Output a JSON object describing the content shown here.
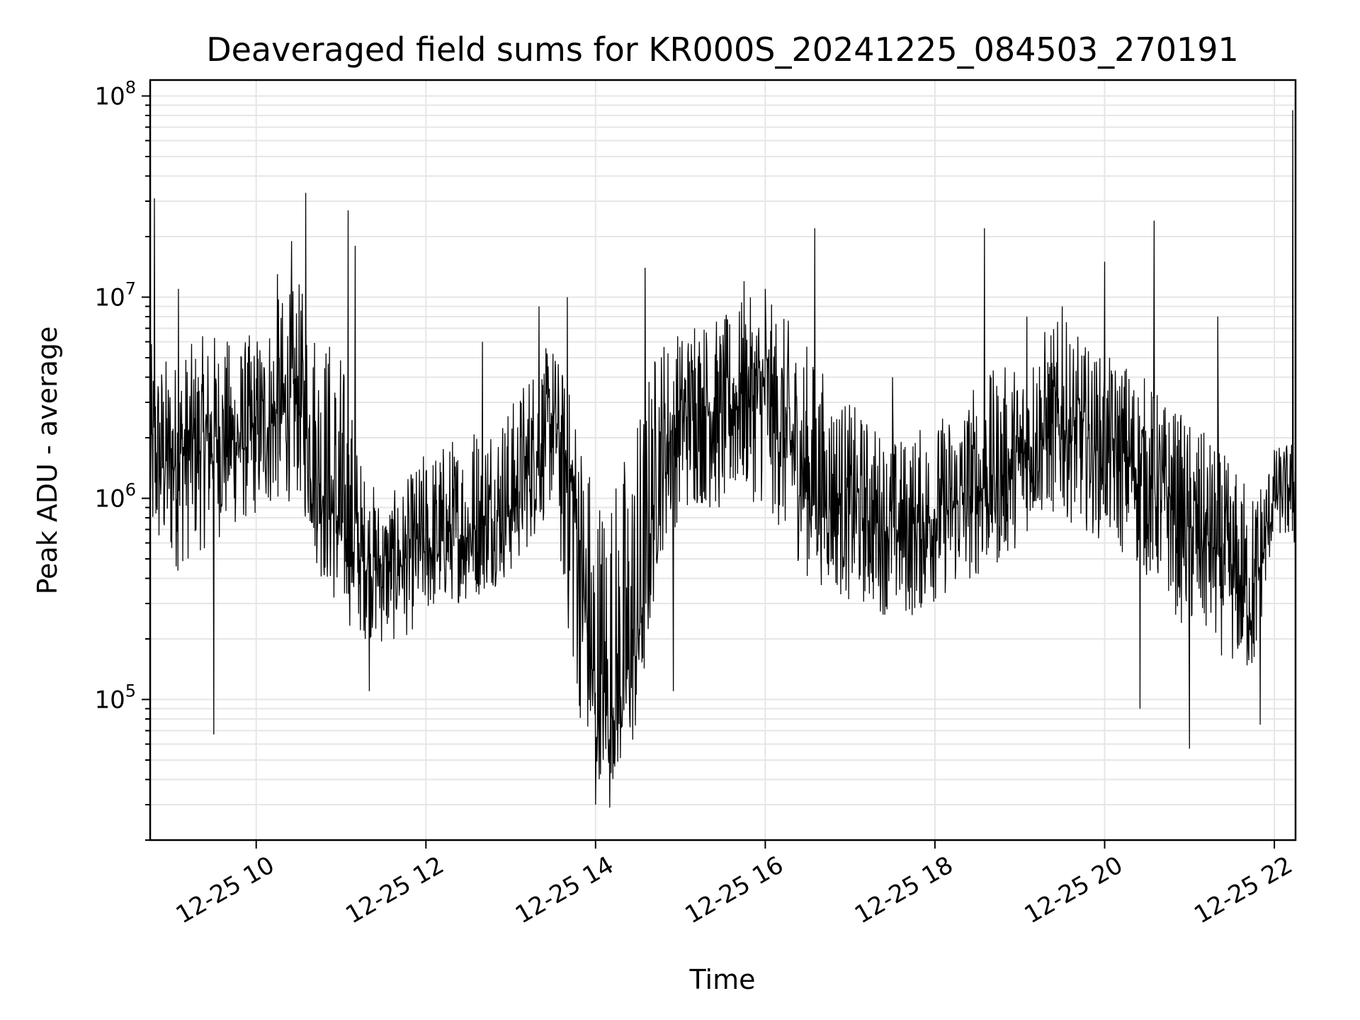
{
  "chart_data": {
    "type": "line",
    "title": "Deaveraged field sums for KR000S_20241225_084503_270191",
    "xlabel": "Time",
    "ylabel": "Peak ADU - average",
    "yscale": "log",
    "ylim": [
      20000,
      120000000
    ],
    "xlim": [
      "12-25 08:45",
      "12-25 22:15"
    ],
    "x_ticks": [
      {
        "value": "12-25 10:00",
        "label": "12-25 10"
      },
      {
        "value": "12-25 12:00",
        "label": "12-25 12"
      },
      {
        "value": "12-25 14:00",
        "label": "12-25 14"
      },
      {
        "value": "12-25 16:00",
        "label": "12-25 16"
      },
      {
        "value": "12-25 18:00",
        "label": "12-25 18"
      },
      {
        "value": "12-25 20:00",
        "label": "12-25 20"
      },
      {
        "value": "12-25 22:00",
        "label": "12-25 22"
      }
    ],
    "y_ticks": [
      {
        "value": 100000,
        "base": "10",
        "exp": "5"
      },
      {
        "value": 1000000,
        "base": "10",
        "exp": "6"
      },
      {
        "value": 10000000,
        "base": "10",
        "exp": "7"
      },
      {
        "value": 100000000,
        "base": "10",
        "exp": "8"
      }
    ],
    "grid": true,
    "line_color": "#000000",
    "series": [
      {
        "x": [
          "12-25 08:45",
          "12-25 09:00",
          "12-25 09:15",
          "12-25 09:30",
          "12-25 09:45",
          "12-25 10:00",
          "12-25 10:15",
          "12-25 10:30",
          "12-25 10:45",
          "12-25 11:00",
          "12-25 11:15",
          "12-25 11:30",
          "12-25 11:45",
          "12-25 12:00",
          "12-25 12:15",
          "12-25 12:30",
          "12-25 12:45",
          "12-25 13:00",
          "12-25 13:15",
          "12-25 13:30",
          "12-25 13:45",
          "12-25 14:00",
          "12-25 14:15",
          "12-25 14:30",
          "12-25 14:45",
          "12-25 15:00",
          "12-25 15:15",
          "12-25 15:30",
          "12-25 15:45",
          "12-25 16:00",
          "12-25 16:15",
          "12-25 16:30",
          "12-25 16:45",
          "12-25 17:00",
          "12-25 17:15",
          "12-25 17:30",
          "12-25 17:45",
          "12-25 18:00",
          "12-25 18:15",
          "12-25 18:30",
          "12-25 18:45",
          "12-25 19:00",
          "12-25 19:15",
          "12-25 19:30",
          "12-25 19:45",
          "12-25 20:00",
          "12-25 20:15",
          "12-25 20:30",
          "12-25 20:45",
          "12-25 21:00",
          "12-25 21:15",
          "12-25 21:30",
          "12-25 21:45",
          "12-25 22:00",
          "12-25 22:15"
        ],
        "y": [
          1500000,
          1600000,
          1800000,
          2000000,
          1900000,
          2000000,
          2500000,
          3000000,
          1200000,
          700000,
          500000,
          450000,
          500000,
          550000,
          600000,
          650000,
          750000,
          900000,
          1500000,
          2500000,
          1000000,
          80000,
          90000,
          200000,
          1500000,
          2500000,
          3000000,
          2500000,
          3500000,
          3000000,
          2000000,
          1200000,
          1000000,
          900000,
          800000,
          700000,
          700000,
          800000,
          900000,
          1100000,
          1200000,
          1500000,
          2000000,
          2200000,
          2000000,
          1800000,
          1600000,
          1200000,
          1000000,
          700000,
          600000,
          400000,
          300000,
          1000000,
          1200000
        ],
        "low": [
          500000,
          400000,
          500000,
          600000,
          700000,
          800000,
          900000,
          1000000,
          400000,
          250000,
          200000,
          180000,
          200000,
          250000,
          300000,
          300000,
          350000,
          400000,
          600000,
          900000,
          100000,
          40000,
          40000,
          60000,
          500000,
          800000,
          900000,
          800000,
          1000000,
          900000,
          600000,
          400000,
          350000,
          300000,
          280000,
          250000,
          250000,
          300000,
          350000,
          400000,
          450000,
          600000,
          800000,
          800000,
          700000,
          600000,
          500000,
          400000,
          300000,
          200000,
          180000,
          150000,
          120000,
          700000,
          500000
        ],
        "high": [
          6000000,
          5000000,
          6000000,
          7000000,
          6000000,
          7000000,
          10000000,
          12000000,
          8000000,
          6000000,
          1500000,
          1000000,
          1200000,
          1800000,
          2000000,
          2500000,
          3000000,
          3000000,
          5000000,
          6000000,
          3000000,
          1500000,
          1500000,
          3000000,
          7000000,
          7000000,
          8000000,
          8000000,
          10000000,
          10000000,
          8000000,
          6000000,
          4000000,
          3000000,
          2500000,
          2000000,
          2200000,
          2500000,
          3000000,
          4000000,
          4500000,
          5000000,
          7000000,
          8000000,
          6000000,
          5000000,
          5000000,
          4000000,
          3000000,
          2500000,
          2000000,
          1500000,
          1200000,
          1800000,
          2000000
        ],
        "spikes": [
          {
            "x": "12-25 08:48",
            "y": 31000000
          },
          {
            "x": "12-25 09:05",
            "y": 11000000
          },
          {
            "x": "12-25 09:30",
            "y": 67000
          },
          {
            "x": "12-25 10:15",
            "y": 13000000
          },
          {
            "x": "12-25 10:25",
            "y": 19000000
          },
          {
            "x": "12-25 10:35",
            "y": 33000000
          },
          {
            "x": "12-25 11:05",
            "y": 27000000
          },
          {
            "x": "12-25 11:10",
            "y": 18000000
          },
          {
            "x": "12-25 11:20",
            "y": 110000
          },
          {
            "x": "12-25 12:40",
            "y": 6000000
          },
          {
            "x": "12-25 13:20",
            "y": 9000000
          },
          {
            "x": "12-25 13:40",
            "y": 10000000
          },
          {
            "x": "12-25 14:00",
            "y": 30000
          },
          {
            "x": "12-25 14:10",
            "y": 29000
          },
          {
            "x": "12-25 14:35",
            "y": 14000000
          },
          {
            "x": "12-25 14:55",
            "y": 110000
          },
          {
            "x": "12-25 15:10",
            "y": 7000000
          },
          {
            "x": "12-25 15:45",
            "y": 12000000
          },
          {
            "x": "12-25 16:00",
            "y": 11000000
          },
          {
            "x": "12-25 16:35",
            "y": 22000000
          },
          {
            "x": "12-25 17:30",
            "y": 4000000
          },
          {
            "x": "12-25 18:35",
            "y": 22000000
          },
          {
            "x": "12-25 19:05",
            "y": 8000000
          },
          {
            "x": "12-25 19:30",
            "y": 9000000
          },
          {
            "x": "12-25 20:00",
            "y": 15000000
          },
          {
            "x": "12-25 20:25",
            "y": 90000
          },
          {
            "x": "12-25 20:35",
            "y": 24000000
          },
          {
            "x": "12-25 21:00",
            "y": 57000
          },
          {
            "x": "12-25 21:20",
            "y": 8000000
          },
          {
            "x": "12-25 21:50",
            "y": 75000
          },
          {
            "x": "12-25 22:13",
            "y": 85000000
          }
        ]
      }
    ]
  }
}
